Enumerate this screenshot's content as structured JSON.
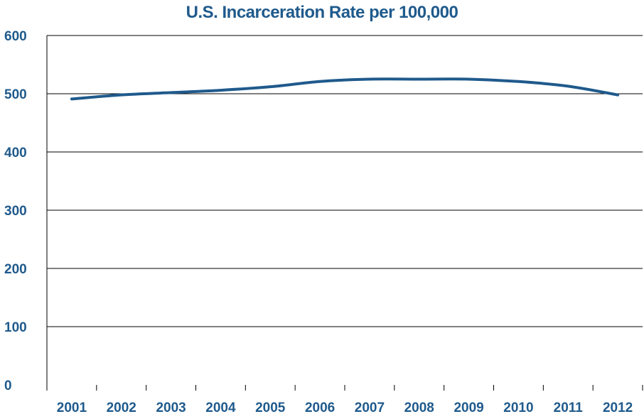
{
  "chart_data": {
    "type": "line",
    "title": "U.S. Incarceration Rate per 100,000",
    "xlabel": "",
    "ylabel": "",
    "categories": [
      "2001",
      "2002",
      "2003",
      "2004",
      "2005",
      "2006",
      "2007",
      "2008",
      "2009",
      "2010",
      "2011",
      "2012"
    ],
    "series": [
      {
        "values": [
          491,
          498,
          502,
          506,
          512,
          521,
          525,
          525,
          525,
          521,
          513,
          498
        ]
      }
    ],
    "ylim": [
      0,
      600
    ],
    "yticks": [
      0,
      100,
      200,
      300,
      400,
      500,
      600
    ],
    "grid": true,
    "legend": "none",
    "line_color": "#1f5a8c",
    "text_color": "#1f5a8c",
    "grid_color": "#000000"
  }
}
